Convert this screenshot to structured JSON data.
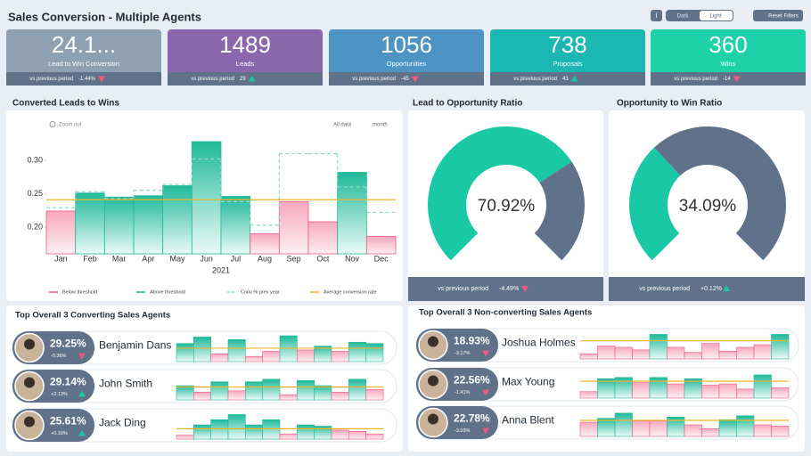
{
  "header": {
    "title": "Sales Conversion - Multiple Agents",
    "info": "i",
    "theme_dark": "Dark",
    "theme_light": "Light",
    "reset": "Reset Filters"
  },
  "kpis": [
    {
      "value": "24.1...",
      "label": "Lead to Win Conversion",
      "compare": "vs previous period",
      "change": "-1.44%",
      "trend": "down",
      "color": "#8fa0b3"
    },
    {
      "value": 1489,
      "label": "Leads",
      "compare": "vs previous period",
      "change": 29,
      "trend": "up",
      "color": "#8a66ad"
    },
    {
      "value": 1056,
      "label": "Opportunities",
      "compare": "vs previous period",
      "change": -45,
      "trend": "down",
      "color": "#4d93c4"
    },
    {
      "value": 738,
      "label": "Proposals",
      "compare": "vs previous period",
      "change": 43,
      "trend": "up",
      "color": "#1bb7b3"
    },
    {
      "value": 360,
      "label": "Wins",
      "compare": "vs previous period",
      "change": -14,
      "trend": "down",
      "color": "#1dd2a9"
    }
  ],
  "chart_data": [
    {
      "type": "bar",
      "title": "Converted Leads to Wins",
      "controls": {
        "zoom": "Zoom out",
        "range": "All data",
        "period": "month"
      },
      "categories": [
        "Jan",
        "Feb",
        "Mar",
        "Apr",
        "May",
        "Jun",
        "Jul",
        "Aug",
        "Sep",
        "Oct",
        "Nov",
        "Dec"
      ],
      "x_label": "2021",
      "values": [
        0.224,
        0.251,
        0.245,
        0.247,
        0.262,
        0.328,
        0.246,
        0.19,
        0.238,
        0.208,
        0.282,
        0.186
      ],
      "ylim": [
        0.16,
        0.34
      ],
      "yticks": [
        {
          "value": 0.2,
          "label": "0.20"
        },
        {
          "value": 0.25,
          "label": "0.25"
        },
        {
          "value": 0.3,
          "label": "0.30"
        }
      ],
      "below": {
        "name": "Below threshold",
        "color": "#ec5b83"
      },
      "above": {
        "name": "Above threshold",
        "color": "#1fb99a"
      },
      "prev_year": {
        "name": "Conv % prev year",
        "color": "#8fd8cc",
        "values": [
          0.229,
          0.253,
          0.243,
          0.255,
          0.264,
          0.302,
          0.238,
          0.203,
          0.31,
          0.31,
          0.26,
          0.222
        ]
      },
      "average": {
        "name": "Average conversion rate",
        "color": "#f0b429",
        "value": 0.241
      }
    },
    {
      "type": "gauge",
      "title": "Lead to Opportunity Ratio",
      "values": [
        70.92
      ],
      "value_labels": [
        "70.92%"
      ],
      "ylim": [
        0,
        100
      ],
      "colors": [
        "#19c9a6",
        "#5f7289"
      ],
      "compare": "vs previous period",
      "change": "-4.49%",
      "trend": "down"
    },
    {
      "type": "gauge",
      "title": "Opportunity to Win Ratio",
      "values": [
        34.09
      ],
      "value_labels": [
        "34.09%"
      ],
      "ylim": [
        0,
        100
      ],
      "colors": [
        "#19c9a6",
        "#5f7289"
      ],
      "compare": "vs previous period",
      "change": "+0.12%",
      "trend": "up"
    }
  ],
  "spark_ylim": [
    0,
    100
  ],
  "agent_panels": [
    {
      "title": "Top Overall 3 Converting Sales Agents",
      "agents": [
        {
          "name": "Benjamin Dans",
          "rate": "29.25%",
          "change": "-0.36%",
          "trend": "down",
          "spark": [
            70,
            95,
            30,
            85,
            20,
            40,
            100,
            45,
            60,
            40,
            75,
            70
          ],
          "average": 52
        },
        {
          "name": "John Smith",
          "rate": "29.14%",
          "change": "+2.13%",
          "trend": "up",
          "spark": [
            55,
            30,
            70,
            35,
            70,
            80,
            20,
            75,
            55,
            30,
            80,
            40
          ],
          "average": 50
        },
        {
          "name": "Jack Ding",
          "rate": "25.61%",
          "change": "+0.18%",
          "trend": "up",
          "spark": [
            15,
            55,
            75,
            95,
            55,
            75,
            20,
            55,
            50,
            35,
            30,
            20
          ],
          "average": 40
        }
      ]
    },
    {
      "title": "Top Overall 3 Non-converting Sales Agents",
      "agents": [
        {
          "name": "Joshua Holmes",
          "rate": "18.93%",
          "change": "-3.17%",
          "trend": "down",
          "spark": [
            20,
            50,
            45,
            35,
            95,
            45,
            25,
            60,
            30,
            45,
            55,
            95
          ],
          "average": 70
        },
        {
          "name": "Max Young",
          "rate": "22.56%",
          "change": "-1.41%",
          "trend": "down",
          "spark": [
            25,
            75,
            80,
            60,
            80,
            55,
            75,
            50,
            55,
            35,
            90,
            40
          ],
          "average": 65
        },
        {
          "name": "Anna Blent",
          "rate": "22.78%",
          "change": "-3.03%",
          "trend": "down",
          "spark": [
            55,
            70,
            90,
            60,
            60,
            75,
            45,
            30,
            65,
            80,
            45,
            40
          ],
          "average": 62
        }
      ]
    }
  ]
}
